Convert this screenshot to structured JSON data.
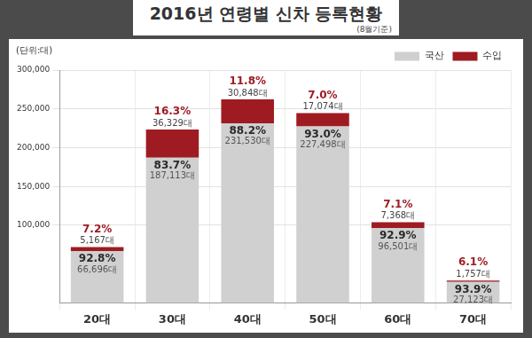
{
  "chart_data": {
    "type": "bar",
    "title": "2016년 연령별 신차 등록현황",
    "subtitle": "(8월기준)",
    "y_label": "(단위:대)",
    "categories": [
      "20대",
      "30대",
      "40대",
      "50대",
      "60대",
      "70대"
    ],
    "series": [
      {
        "name": "국산",
        "color": "#d0d0d0",
        "values": [
          66696,
          187113,
          231530,
          227498,
          96501,
          27123
        ],
        "value_labels": [
          "66,696대",
          "187,113대",
          "231,530대",
          "227,498대",
          "96,501대",
          "27,123대"
        ],
        "share_labels": [
          "92.8%",
          "83.7%",
          "88.2%",
          "93.0%",
          "92.9%",
          "93.9%"
        ]
      },
      {
        "name": "수입",
        "color": "#9e1b22",
        "values": [
          5167,
          36329,
          30848,
          17074,
          7368,
          1757
        ],
        "value_labels": [
          "5,167대",
          "36,329대",
          "30,848대",
          "17,074대",
          "7,368대",
          "1,757대"
        ],
        "share_labels": [
          "7.2%",
          "16.3%",
          "11.8%",
          "7.0%",
          "7.1%",
          "6.1%"
        ]
      }
    ],
    "ylim": [
      0,
      300000
    ],
    "yticks": [
      {
        "value": 100000,
        "label": "100,000"
      },
      {
        "value": 150000,
        "label": "150,000"
      },
      {
        "value": 200000,
        "label": "200,000"
      },
      {
        "value": 250000,
        "label": "250,000"
      },
      {
        "value": 300000,
        "label": "300,000"
      }
    ],
    "grid": true,
    "stacked": true,
    "data_labels": true,
    "legend": "upper right"
  }
}
